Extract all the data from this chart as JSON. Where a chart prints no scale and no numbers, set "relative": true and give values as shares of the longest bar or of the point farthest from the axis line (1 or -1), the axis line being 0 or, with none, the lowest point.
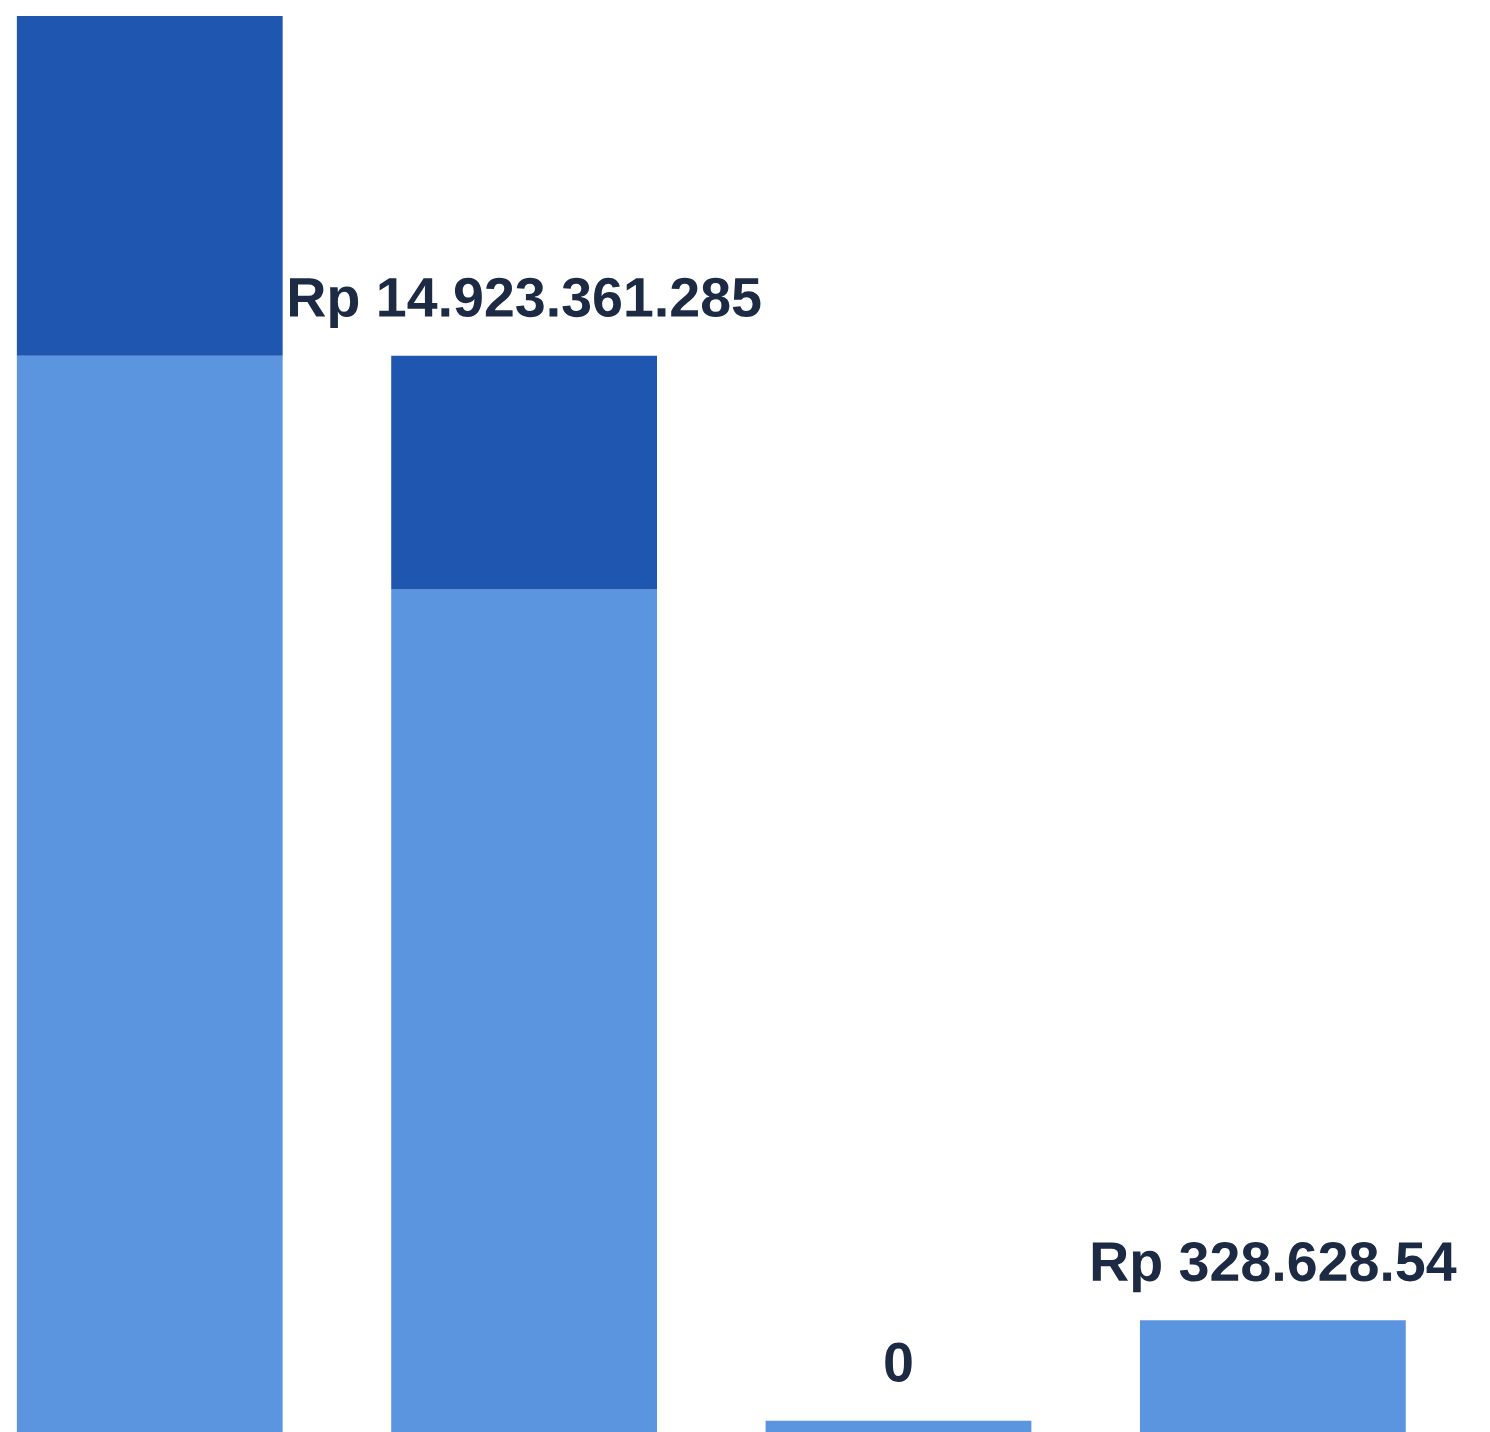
{
  "chart_data": {
    "type": "bar",
    "relative": true,
    "stacked": true,
    "categories": [
      null,
      null,
      null,
      null
    ],
    "series": [
      {
        "color": "#5b95e0",
        "values": [
          0.76,
          0.595,
          0.008,
          0.079
        ]
      },
      {
        "color": "#1f56b0",
        "values": [
          0.24,
          0.165,
          null,
          null
        ]
      }
    ],
    "totals": [
      null,
      "Rp 14.923.361.285",
      "0",
      "Rp 328.628.54"
    ]
  }
}
